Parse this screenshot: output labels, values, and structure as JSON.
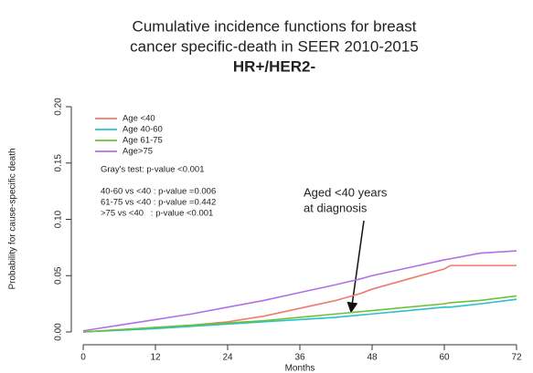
{
  "chart_data": {
    "type": "line",
    "title_lines": [
      "Cumulative incidence functions for breast",
      "cancer specific-death in SEER 2010-2015",
      "HR+/HER2-"
    ],
    "xlabel": "Months",
    "ylabel": "Probability for cause-specific death",
    "x": [
      0,
      6,
      12,
      18,
      24,
      30,
      36,
      42,
      46,
      48,
      54,
      60,
      61,
      66,
      72
    ],
    "series": [
      {
        "name": "Age <40",
        "color": "#f07a72",
        "values": [
          0,
          0.002,
          0.004,
          0.006,
          0.009,
          0.014,
          0.021,
          0.028,
          0.034,
          0.038,
          0.047,
          0.056,
          0.059,
          0.059,
          0.059
        ]
      },
      {
        "name": "Age 40-60",
        "color": "#28c2c8",
        "values": [
          0,
          0.0015,
          0.003,
          0.005,
          0.007,
          0.009,
          0.011,
          0.013,
          0.015,
          0.016,
          0.019,
          0.022,
          0.022,
          0.025,
          0.029
        ]
      },
      {
        "name": "Age 61-75",
        "color": "#6cc23a",
        "values": [
          0,
          0.002,
          0.004,
          0.006,
          0.008,
          0.01,
          0.013,
          0.016,
          0.018,
          0.019,
          0.022,
          0.025,
          0.026,
          0.028,
          0.032
        ]
      },
      {
        "name": "Age>75",
        "color": "#b070e8",
        "values": [
          0.001,
          0.006,
          0.011,
          0.016,
          0.022,
          0.028,
          0.035,
          0.042,
          0.047,
          0.05,
          0.057,
          0.064,
          0.065,
          0.07,
          0.072
        ]
      }
    ],
    "xlim": [
      0,
      72
    ],
    "xticks": [
      0,
      12,
      24,
      36,
      48,
      60,
      72
    ],
    "ylim": [
      0,
      0.2
    ],
    "yticks": [
      {
        "value": 0,
        "label": "0.00"
      },
      0.05,
      {
        "value": 0.1,
        "label": "0.10"
      },
      0.15,
      {
        "value": 0.2,
        "label": "0.20"
      }
    ],
    "annotations": [
      "Gray's test: p-value <0.001",
      "40-60 vs <40 : p-value =0.006",
      "61-75 vs <40 : p-value =0.442",
      ">75 vs <40   : p-value <0.001"
    ],
    "callout": [
      "Aged <40 years",
      "at diagnosis"
    ]
  }
}
